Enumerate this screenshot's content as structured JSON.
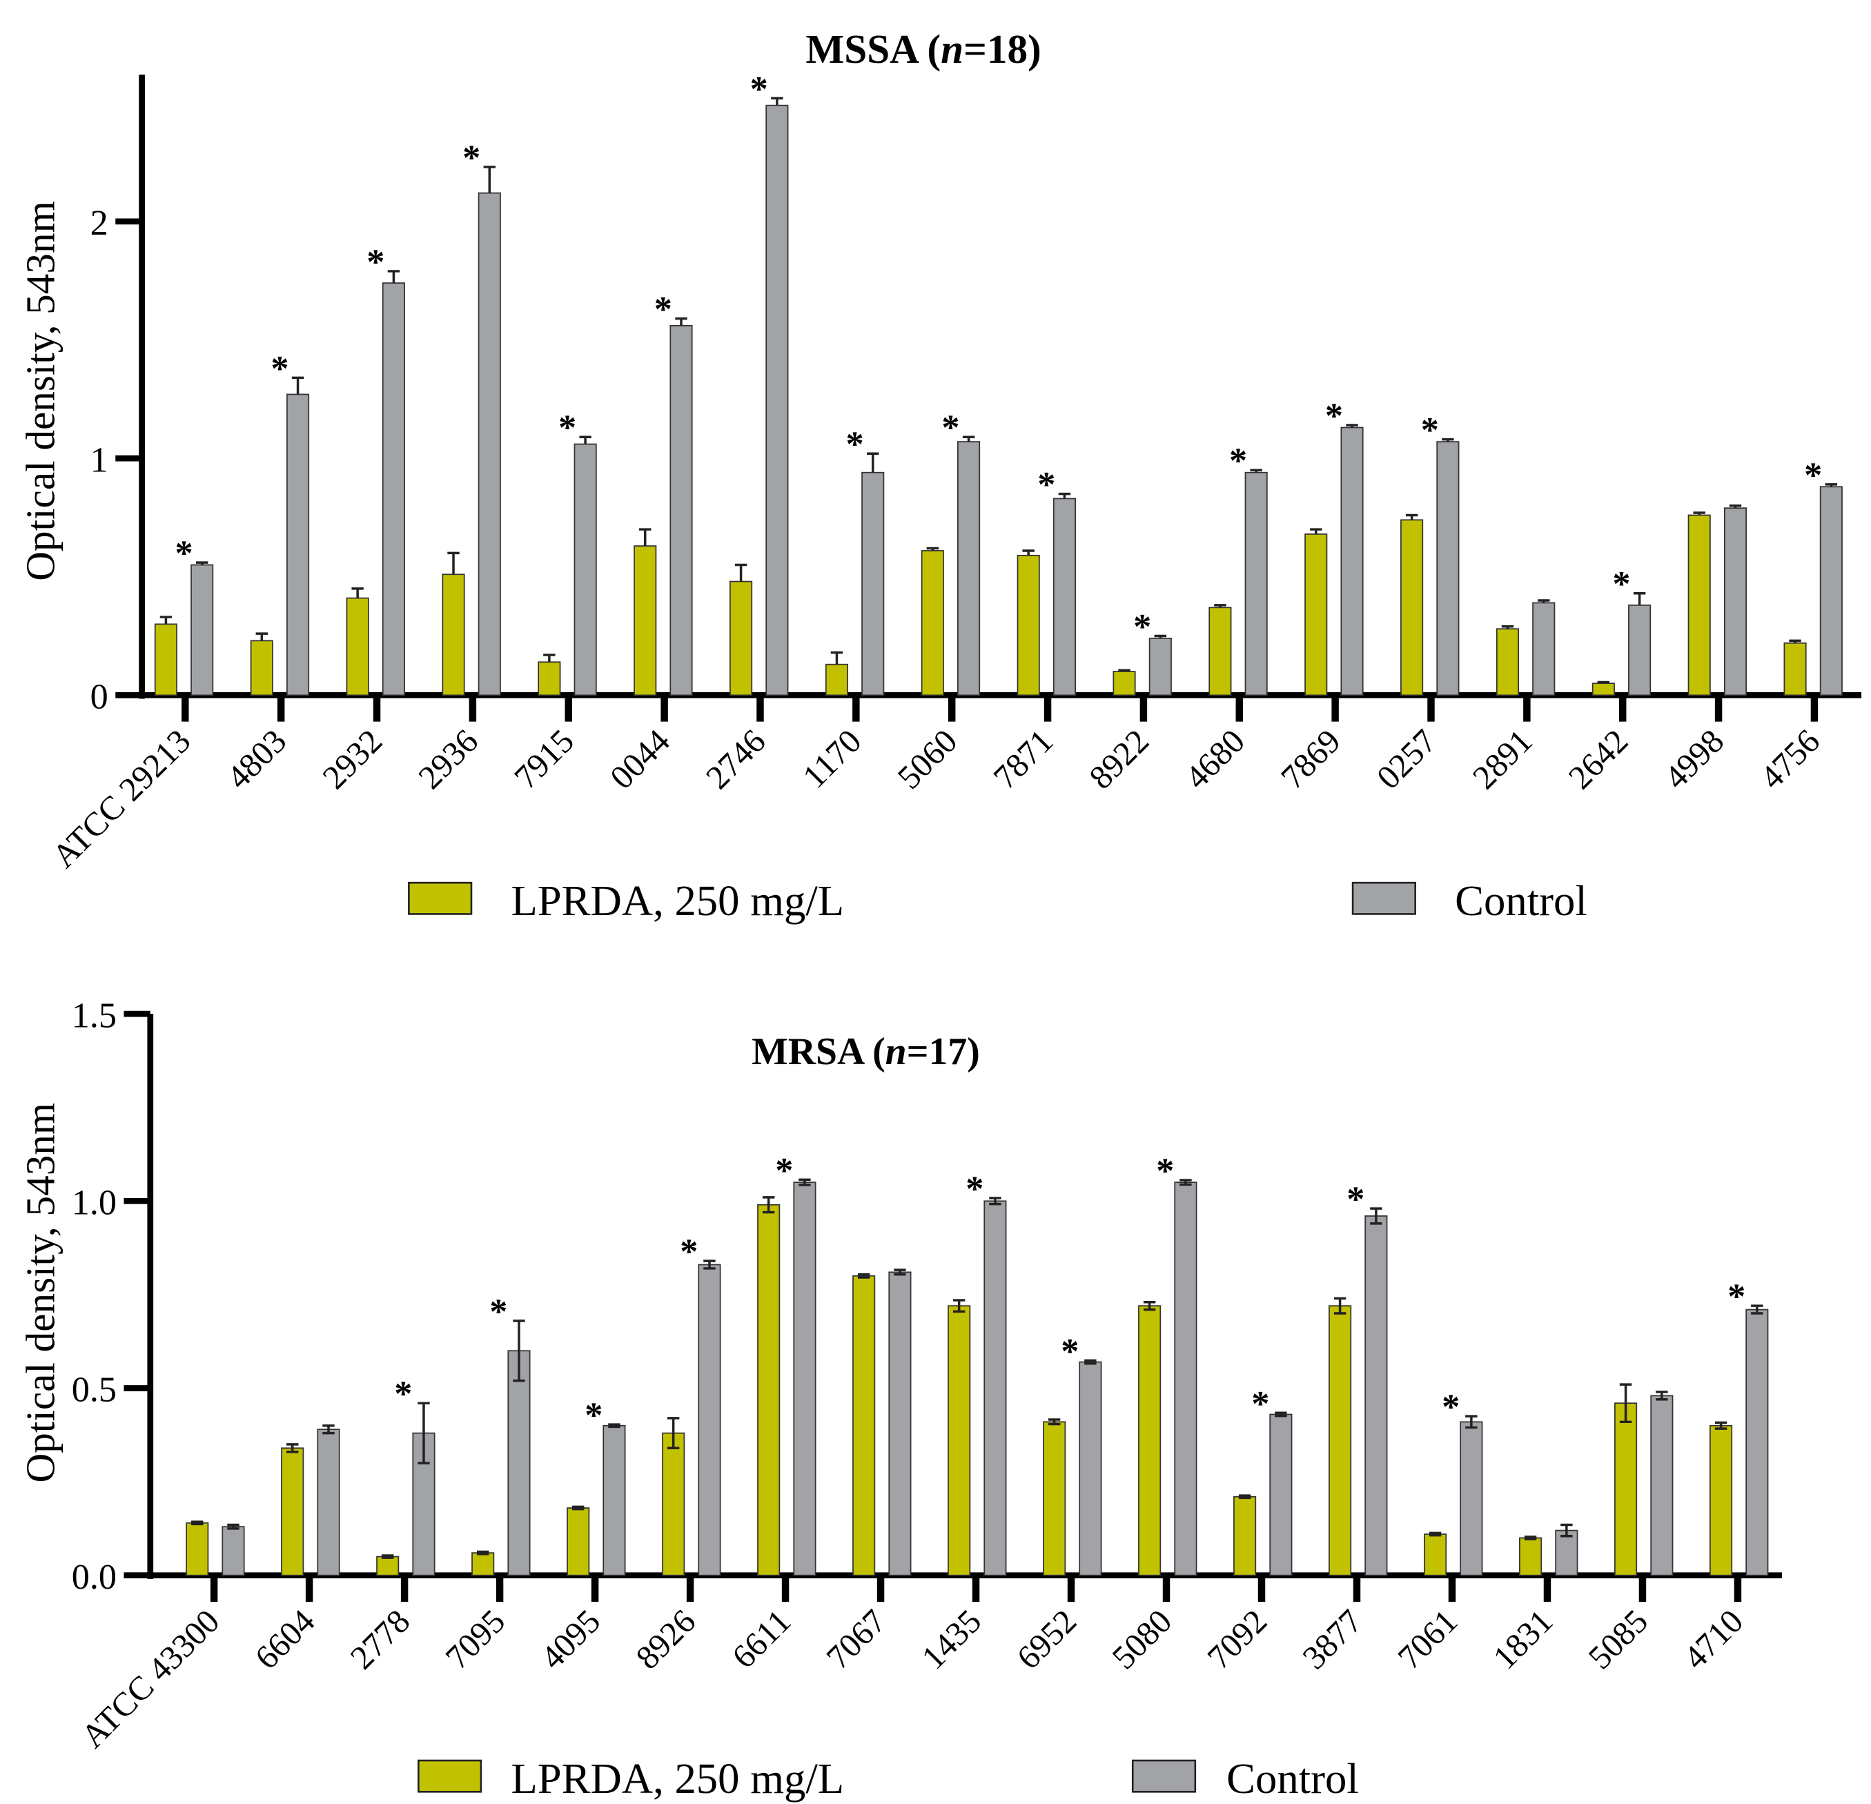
{
  "colors": {
    "lprda": "#c2c100",
    "control": "#a2a3a7",
    "axis": "#000000"
  },
  "chart_data": [
    {
      "type": "bar",
      "title": "MSSA (n=18)",
      "title_parts": [
        "MSSA (",
        "n",
        "=18)"
      ],
      "ylabel": "Optical density, 543nm",
      "ylim": [
        0,
        2.6
      ],
      "yticks": [
        0,
        1,
        2
      ],
      "ytick_labels": [
        "0",
        "1",
        "2"
      ],
      "legend": [
        "LPRDA, 250 mg/L",
        "Control"
      ],
      "legend_placement": "bottom",
      "significance_marker": "*",
      "categories": [
        "ATCC 29213",
        "4803",
        "2932",
        "2936",
        "7915",
        "0044",
        "2746",
        "1170",
        "5060",
        "7871",
        "8922",
        "4680",
        "7869",
        "0257",
        "2891",
        "2642",
        "4998",
        "4756"
      ],
      "series": [
        {
          "name": "LPRDA, 250 mg/L",
          "values": [
            0.3,
            0.23,
            0.41,
            0.51,
            0.14,
            0.63,
            0.48,
            0.13,
            0.61,
            0.59,
            0.1,
            0.37,
            0.68,
            0.74,
            0.28,
            0.05,
            0.76,
            0.22
          ],
          "errors": [
            0.03,
            0.03,
            0.04,
            0.09,
            0.03,
            0.07,
            0.07,
            0.05,
            0.01,
            0.02,
            0.005,
            0.01,
            0.02,
            0.02,
            0.01,
            0.005,
            0.01,
            0.01
          ]
        },
        {
          "name": "Control",
          "values": [
            0.55,
            1.27,
            1.74,
            2.12,
            1.06,
            1.56,
            2.49,
            0.94,
            1.07,
            0.83,
            0.24,
            0.94,
            1.13,
            1.07,
            0.39,
            0.38,
            0.79,
            0.88
          ],
          "errors": [
            0.01,
            0.07,
            0.05,
            0.11,
            0.03,
            0.03,
            0.03,
            0.08,
            0.02,
            0.02,
            0.01,
            0.01,
            0.01,
            0.01,
            0.01,
            0.05,
            0.01,
            0.01
          ]
        }
      ],
      "significant": [
        true,
        true,
        true,
        true,
        true,
        true,
        true,
        true,
        true,
        true,
        true,
        true,
        true,
        true,
        false,
        true,
        false,
        true
      ]
    },
    {
      "type": "bar",
      "title": "MRSA (n=17)",
      "title_parts": [
        "MRSA (",
        "n",
        "=17)"
      ],
      "ylabel": "Optical density, 543nm",
      "ylim": [
        0,
        1.5
      ],
      "yticks": [
        0,
        0.5,
        1.0,
        1.5
      ],
      "ytick_labels": [
        "0.0",
        "0.5",
        "1.0",
        "1.5"
      ],
      "legend": [
        "LPRDA, 250 mg/L",
        "Control"
      ],
      "legend_placement": "bottom",
      "significance_marker": "*",
      "categories": [
        "ATCC 43300",
        "6604",
        "2778",
        "7095",
        "4095",
        "8926",
        "6611",
        "7067",
        "1435",
        "6952",
        "5080",
        "7092",
        "3877",
        "7061",
        "1831",
        "5085",
        "4710"
      ],
      "series": [
        {
          "name": "LPRDA, 250 mg/L",
          "values": [
            0.14,
            0.34,
            0.05,
            0.06,
            0.18,
            0.38,
            0.99,
            0.8,
            0.72,
            0.41,
            0.72,
            0.21,
            0.72,
            0.11,
            0.1,
            0.46,
            0.4
          ],
          "errors": [
            0.003,
            0.01,
            0.003,
            0.003,
            0.003,
            0.04,
            0.02,
            0.004,
            0.015,
            0.006,
            0.01,
            0.003,
            0.02,
            0.003,
            0.003,
            0.05,
            0.008
          ]
        },
        {
          "name": "Control",
          "values": [
            0.13,
            0.39,
            0.38,
            0.6,
            0.4,
            0.83,
            1.05,
            0.81,
            1.0,
            0.57,
            1.05,
            0.43,
            0.96,
            0.41,
            0.12,
            0.48,
            0.71
          ],
          "errors": [
            0.005,
            0.01,
            0.08,
            0.08,
            0.003,
            0.01,
            0.007,
            0.006,
            0.008,
            0.004,
            0.006,
            0.004,
            0.02,
            0.015,
            0.015,
            0.01,
            0.01
          ]
        }
      ],
      "significant": [
        false,
        false,
        true,
        true,
        true,
        true,
        true,
        false,
        true,
        true,
        true,
        true,
        true,
        true,
        false,
        false,
        true
      ]
    }
  ]
}
